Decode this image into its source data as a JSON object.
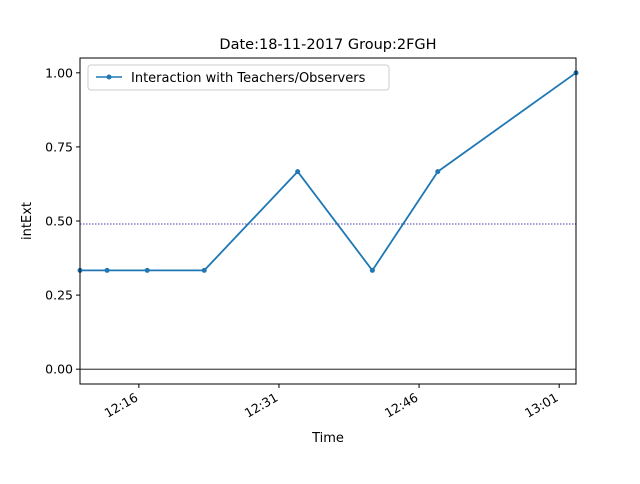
{
  "chart_data": {
    "type": "line",
    "title": "Date:18-11-2017  Group:2FGH",
    "xlabel": "Time",
    "ylabel": "intExt",
    "x_ticks": [
      "12:16",
      "12:31",
      "12:46",
      "13:01"
    ],
    "x_tick_minutes": [
      736,
      751,
      766,
      781
    ],
    "xlim_minutes": [
      729.7,
      782.8
    ],
    "y_ticks": [
      "0.00",
      "0.25",
      "0.50",
      "0.75",
      "1.00"
    ],
    "y_tick_values": [
      0,
      0.25,
      0.5,
      0.75,
      1.0
    ],
    "ylim": [
      -0.05,
      1.05
    ],
    "series": [
      {
        "name": "Interaction with Teachers/Observers",
        "color": "#1f77b4",
        "x_minutes": [
          729.7,
          732.6,
          736.9,
          743.0,
          753.0,
          761.0,
          768.0,
          782.8
        ],
        "values": [
          0.3333,
          0.3333,
          0.3333,
          0.3333,
          0.6667,
          0.3333,
          0.6667,
          1.0
        ]
      }
    ],
    "reference_lines": [
      {
        "y": 0.49,
        "color": "#00008b",
        "style": "dotted"
      },
      {
        "y": 0.0,
        "color": "#000000",
        "style": "solid"
      }
    ],
    "legend_position": "upper-left",
    "grid": false
  }
}
